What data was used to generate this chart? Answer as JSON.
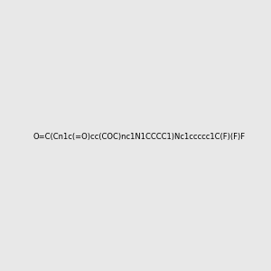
{
  "smiles": "O=C(Cn1c(=O)cc(COC)nc1N1CCCC1)Nc1ccccc1C(F)(F)F",
  "image_size": 300,
  "background_color": "#e8e8e8"
}
